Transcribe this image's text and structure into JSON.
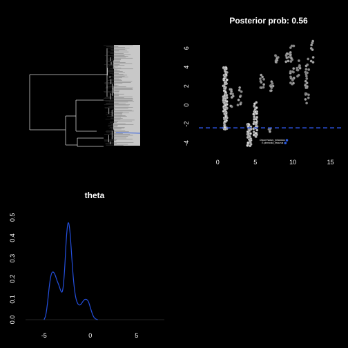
{
  "chart_data": [
    {
      "type": "tree",
      "title": "",
      "tip_labels_visible": false
    },
    {
      "type": "scatter",
      "title": "Posterior prob: 0.56",
      "xlabel": "",
      "ylabel": "",
      "xlim": [
        -2.5,
        16.5
      ],
      "ylim": [
        -4.5,
        7
      ],
      "x_ticks": [
        0,
        5,
        10,
        15
      ],
      "y_ticks": [
        -4,
        -2,
        0,
        2,
        4,
        6
      ],
      "hline": {
        "y": -2.4,
        "style": "dashed",
        "color": "#2b4fd8"
      },
      "point_color": "#8a8a8a",
      "highlight_color": "#2f5de0",
      "groups": [
        {
          "x": 1,
          "y_from": -2.6,
          "y_to": 4.0,
          "n": 120,
          "shade": "light"
        },
        {
          "x": 1.9,
          "y_from": -0.5,
          "y_to": 1.8,
          "n": 10,
          "shade": "mid"
        },
        {
          "x": 2.9,
          "y_from": -0.3,
          "y_to": 1.2,
          "n": 6,
          "shade": "mid"
        },
        {
          "x": 3.0,
          "y_from": 1.4,
          "y_to": 1.9,
          "n": 3,
          "shade": "mid"
        },
        {
          "x": 4.2,
          "y_from": -4.3,
          "y_to": -2.0,
          "n": 40,
          "shade": "light"
        },
        {
          "x": 5.0,
          "y_from": -3.5,
          "y_to": 0.3,
          "n": 45,
          "shade": "light"
        },
        {
          "x": 5.9,
          "y_from": 1.8,
          "y_to": 3.3,
          "n": 10,
          "shade": "mid"
        },
        {
          "x": 6.8,
          "y_from": -2.8,
          "y_to": -2.1,
          "n": 4,
          "shade": "mid"
        },
        {
          "x": 7.2,
          "y_from": 1.4,
          "y_to": 2.8,
          "n": 10,
          "shade": "mid"
        },
        {
          "x": 7.9,
          "y_from": 4.3,
          "y_to": 5.6,
          "n": 8,
          "shade": "mid"
        },
        {
          "x": 9.3,
          "y_from": 4.0,
          "y_to": 5.5,
          "n": 8,
          "shade": "mid"
        },
        {
          "x": 9.9,
          "y_from": 2.0,
          "y_to": 6.3,
          "n": 24,
          "shade": "mid"
        },
        {
          "x": 10.8,
          "y_from": 3.0,
          "y_to": 5.8,
          "n": 10,
          "shade": "mid"
        },
        {
          "x": 11.9,
          "y_from": 0.0,
          "y_to": 5.0,
          "n": 24,
          "shade": "mid"
        },
        {
          "x": 12.6,
          "y_from": 4.5,
          "y_to": 6.8,
          "n": 8,
          "shade": "mid"
        }
      ],
      "highlight_points": [
        {
          "x": 9.2,
          "y": -3.7,
          "label": "Oncorrhodus_mirandus"
        },
        {
          "x": 9.0,
          "y": -4.0,
          "label": "E.pinnicola_fissurus"
        }
      ]
    },
    {
      "type": "line",
      "title": "theta",
      "xlabel": "",
      "ylabel": "",
      "xlim": [
        -7,
        8
      ],
      "ylim": [
        0,
        0.55
      ],
      "x_ticks": [
        -5,
        0,
        5
      ],
      "y_ticks": [
        0.0,
        0.1,
        0.2,
        0.3,
        0.4,
        0.5
      ],
      "line_color": "#2450e0",
      "series": [
        {
          "name": "",
          "x": [
            -5.0,
            -4.8,
            -4.6,
            -4.4,
            -4.2,
            -4.0,
            -3.8,
            -3.6,
            -3.4,
            -3.2,
            -3.0,
            -2.8,
            -2.6,
            -2.4,
            -2.2,
            -2.0,
            -1.8,
            -1.6,
            -1.4,
            -1.2,
            -1.0,
            -0.8,
            -0.6,
            -0.4,
            -0.2,
            0.0,
            0.2,
            0.4,
            0.6,
            0.8
          ],
          "y": [
            0.0,
            0.02,
            0.09,
            0.18,
            0.23,
            0.235,
            0.22,
            0.19,
            0.17,
            0.14,
            0.13,
            0.22,
            0.4,
            0.49,
            0.44,
            0.3,
            0.18,
            0.11,
            0.08,
            0.07,
            0.075,
            0.09,
            0.1,
            0.1,
            0.09,
            0.06,
            0.03,
            0.01,
            0.003,
            0.0
          ]
        }
      ]
    }
  ]
}
